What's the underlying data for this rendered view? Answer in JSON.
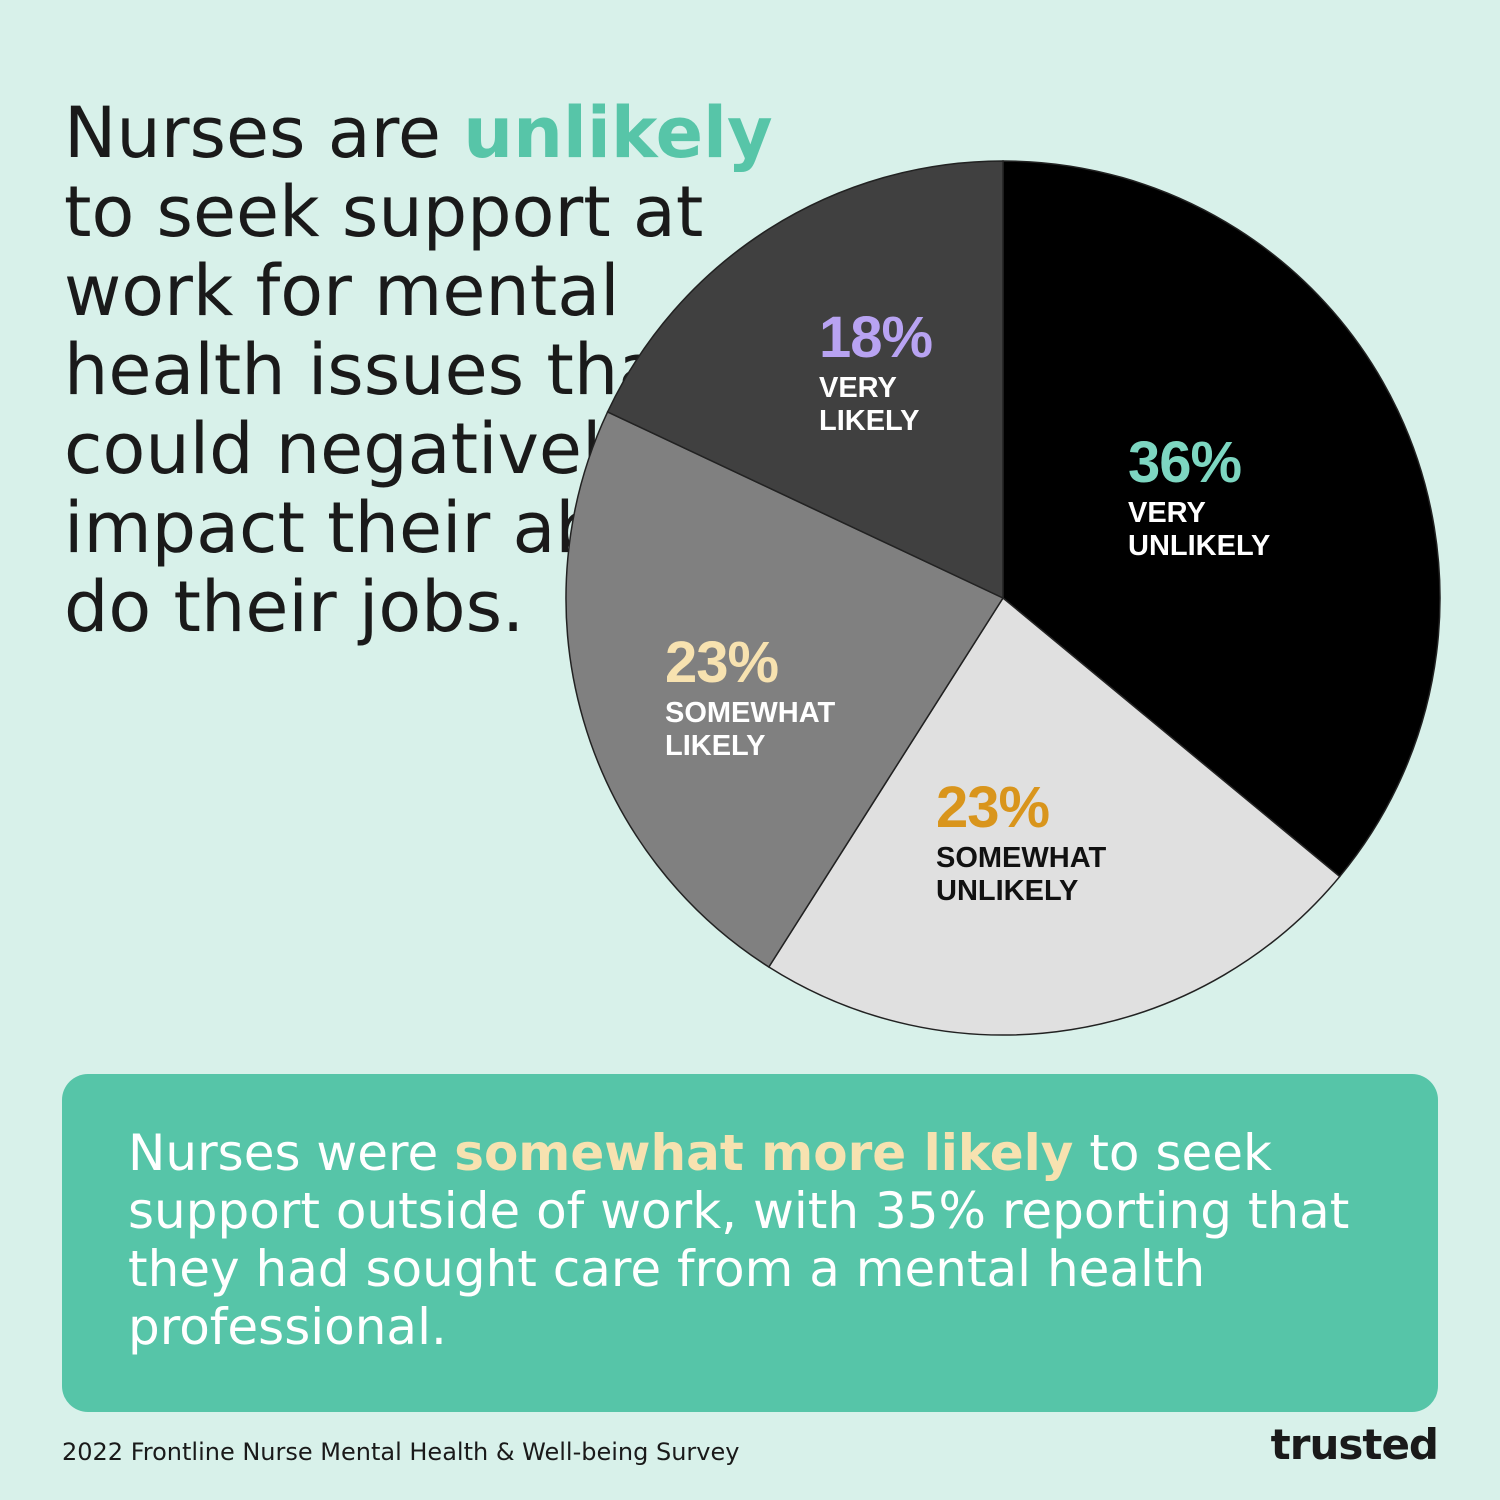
{
  "headline": {
    "prefix": "Nurses are",
    "highlight": "unlikely",
    "rest": "to seek support at work for mental health issues that could negatively impact their ability to do their jobs."
  },
  "chart_data": {
    "type": "pie",
    "slices": [
      {
        "label": "VERY UNLIKELY",
        "value": 36,
        "display": "36%",
        "fill": "#000000",
        "label_color": "#ffffff",
        "pct_color": "#7dd6c1"
      },
      {
        "label": "SOMEWHAT UNLIKELY",
        "value": 23,
        "display": "23%",
        "fill": "#e0e0e0",
        "label_color": "#111111",
        "pct_color": "#d9951c"
      },
      {
        "label": "SOMEWHAT LIKELY",
        "value": 23,
        "display": "23%",
        "fill": "#808080",
        "label_color": "#ffffff",
        "pct_color": "#f7e2b0"
      },
      {
        "label": "VERY LIKELY",
        "value": 18,
        "display": "18%",
        "fill": "#404040",
        "label_color": "#ffffff",
        "pct_color": "#b8a3f2"
      }
    ]
  },
  "panel": {
    "prefix": "Nurses were",
    "highlight": "somewhat more likely",
    "rest": "to seek support outside of work, with 35% reporting that they had sought care from a mental health professional."
  },
  "source": "2022 Frontline Nurse Mental Health & Well-being Survey",
  "brand": "trusted",
  "colors": {
    "background": "#d8f1ea",
    "accent": "#57c5a8",
    "panel": "#56c5a8",
    "panel_highlight": "#f7e2b0"
  }
}
